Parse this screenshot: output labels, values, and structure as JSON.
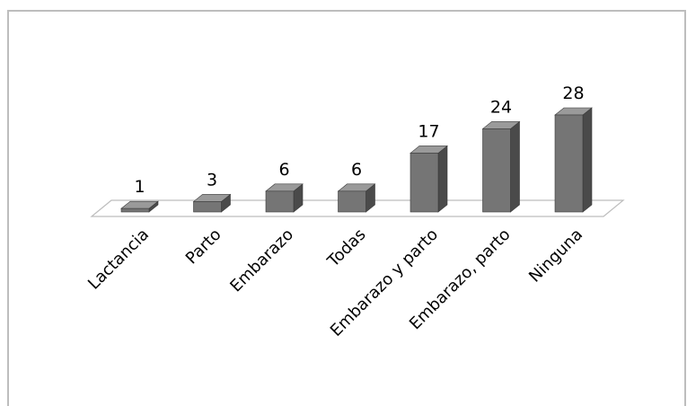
{
  "chart_data": {
    "type": "bar",
    "style": "3d-column",
    "categories": [
      "Lactancia",
      "Parto",
      "Embarazo",
      "Todas",
      "Embarazo y parto",
      "Embarazo, parto",
      "Ninguna"
    ],
    "values": [
      1,
      3,
      6,
      6,
      17,
      24,
      28
    ],
    "data_labels": [
      "1",
      "3",
      "6",
      "6",
      "17",
      "24",
      "28"
    ],
    "title": "",
    "xlabel": "",
    "ylabel": "",
    "ylim": [
      0,
      28
    ],
    "grid": false,
    "legend": "none",
    "colors": {
      "bar_front": "#757575",
      "bar_side": "#4a4a4a",
      "bar_top": "#9a9a9a",
      "floor": "#bdbdbd",
      "frame": "#bdbdbd"
    }
  }
}
